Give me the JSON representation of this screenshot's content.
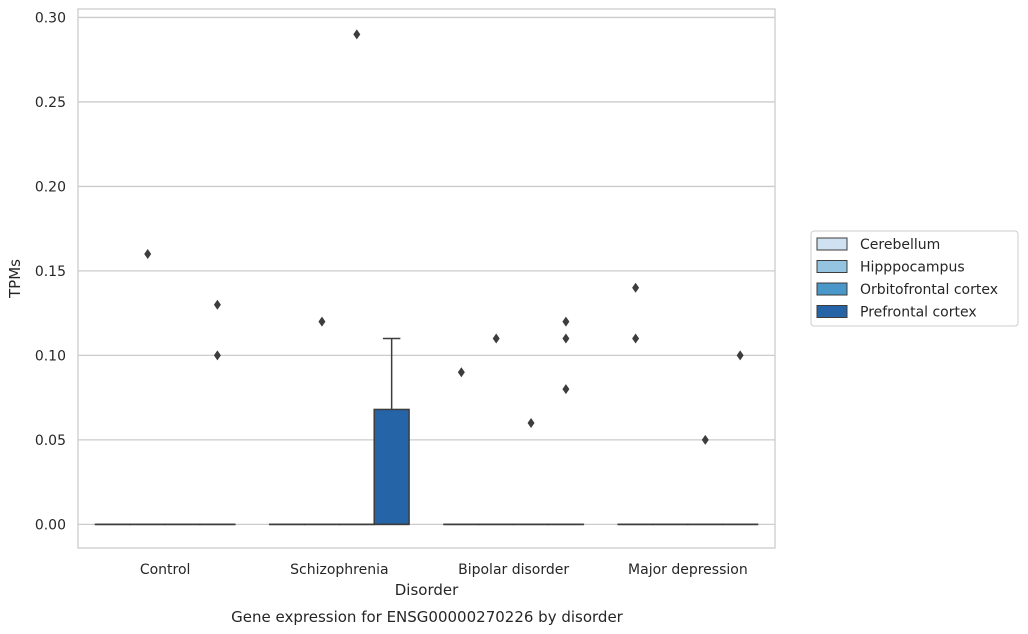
{
  "chart_data": {
    "type": "box",
    "title": "",
    "caption": "Gene expression for ENSG00000270226 by disorder",
    "xlabel": "Disorder",
    "ylabel": "TPMs",
    "ylim": [
      -0.014,
      0.305
    ],
    "yticks": [
      0.0,
      0.05,
      0.1,
      0.15,
      0.2,
      0.25,
      0.3
    ],
    "ytick_labels": [
      "0.00",
      "0.05",
      "0.10",
      "0.15",
      "0.20",
      "0.25",
      "0.30"
    ],
    "grid": "horizontal",
    "legend_position": "right",
    "categories": [
      "Control",
      "Schizophrenia",
      "Bipolar disorder",
      "Major depression"
    ],
    "series": [
      {
        "name": "Cerebellum",
        "color": "#d0e1f2",
        "boxes": [
          {
            "q1": 0,
            "median": 0,
            "q3": 0,
            "whisker_low": 0,
            "whisker_high": 0,
            "outliers": []
          },
          {
            "q1": 0,
            "median": 0,
            "q3": 0,
            "whisker_low": 0,
            "whisker_high": 0,
            "outliers": []
          },
          {
            "q1": 0,
            "median": 0,
            "q3": 0,
            "whisker_low": 0,
            "whisker_high": 0,
            "outliers": [
              0.09
            ]
          },
          {
            "q1": 0,
            "median": 0,
            "q3": 0,
            "whisker_low": 0,
            "whisker_high": 0,
            "outliers": [
              0.14,
              0.11
            ]
          }
        ]
      },
      {
        "name": "Hipppocampus",
        "color": "#94c4df",
        "boxes": [
          {
            "q1": 0,
            "median": 0,
            "q3": 0,
            "whisker_low": 0,
            "whisker_high": 0,
            "outliers": [
              0.16
            ]
          },
          {
            "q1": 0,
            "median": 0,
            "q3": 0,
            "whisker_low": 0,
            "whisker_high": 0,
            "outliers": [
              0.12
            ]
          },
          {
            "q1": 0,
            "median": 0,
            "q3": 0,
            "whisker_low": 0,
            "whisker_high": 0,
            "outliers": [
              0.11
            ]
          },
          {
            "q1": 0,
            "median": 0,
            "q3": 0,
            "whisker_low": 0,
            "whisker_high": 0,
            "outliers": []
          }
        ]
      },
      {
        "name": "Orbitofrontal cortex",
        "color": "#4a98c9",
        "boxes": [
          {
            "q1": 0,
            "median": 0,
            "q3": 0,
            "whisker_low": 0,
            "whisker_high": 0,
            "outliers": []
          },
          {
            "q1": 0,
            "median": 0,
            "q3": 0,
            "whisker_low": 0,
            "whisker_high": 0,
            "outliers": [
              0.29
            ]
          },
          {
            "q1": 0,
            "median": 0,
            "q3": 0,
            "whisker_low": 0,
            "whisker_high": 0,
            "outliers": [
              0.06
            ]
          },
          {
            "q1": 0,
            "median": 0,
            "q3": 0,
            "whisker_low": 0,
            "whisker_high": 0,
            "outliers": [
              0.05
            ]
          }
        ]
      },
      {
        "name": "Prefrontal cortex",
        "color": "#2664a8",
        "boxes": [
          {
            "q1": 0,
            "median": 0,
            "q3": 0,
            "whisker_low": 0,
            "whisker_high": 0,
            "outliers": [
              0.13,
              0.1
            ]
          },
          {
            "q1": 0,
            "median": 0,
            "q3": 0.068,
            "whisker_low": 0,
            "whisker_high": 0.11,
            "outliers": []
          },
          {
            "q1": 0,
            "median": 0,
            "q3": 0,
            "whisker_low": 0,
            "whisker_high": 0,
            "outliers": [
              0.12,
              0.11,
              0.08
            ]
          },
          {
            "q1": 0,
            "median": 0,
            "q3": 0,
            "whisker_low": 0,
            "whisker_high": 0,
            "outliers": [
              0.1
            ]
          }
        ]
      }
    ]
  }
}
